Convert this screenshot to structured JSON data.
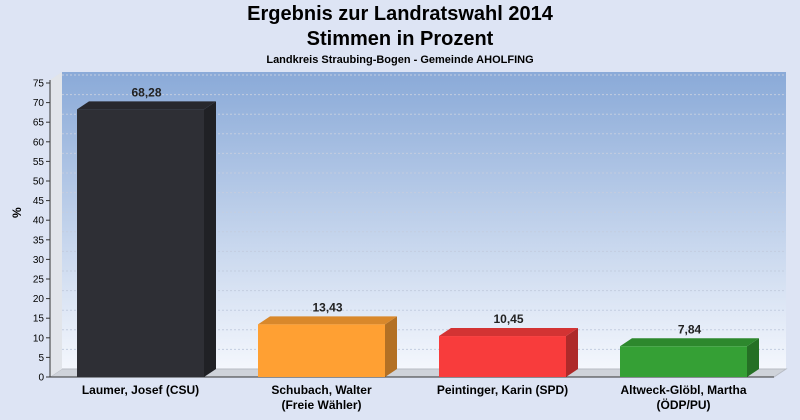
{
  "chart_data": {
    "type": "bar",
    "title": "Ergebnis zur Landratswahl 2014",
    "subtitle": "Stimmen in Prozent",
    "caption": "Landkreis Straubing-Bogen - Gemeinde AHOLFING",
    "ylabel": "%",
    "ylim": [
      0,
      75
    ],
    "yticks": [
      0,
      5,
      10,
      15,
      20,
      25,
      30,
      35,
      40,
      45,
      50,
      55,
      60,
      65,
      70,
      75
    ],
    "categories": [
      [
        "Laumer, Josef (CSU)"
      ],
      [
        "Schubach, Walter",
        "(Freie Wähler)"
      ],
      [
        "Peintinger, Karin (SPD)"
      ],
      [
        "Altweck-Glöbl, Martha",
        "(ÖDP/PU)"
      ]
    ],
    "values": [
      68.28,
      13.43,
      10.45,
      7.84
    ],
    "value_labels": [
      "68,28",
      "13,43",
      "10,45",
      "7,84"
    ],
    "colors": [
      "#2e2f35",
      "#ffa033",
      "#f83c3c",
      "#35a035"
    ],
    "grid": true
  }
}
